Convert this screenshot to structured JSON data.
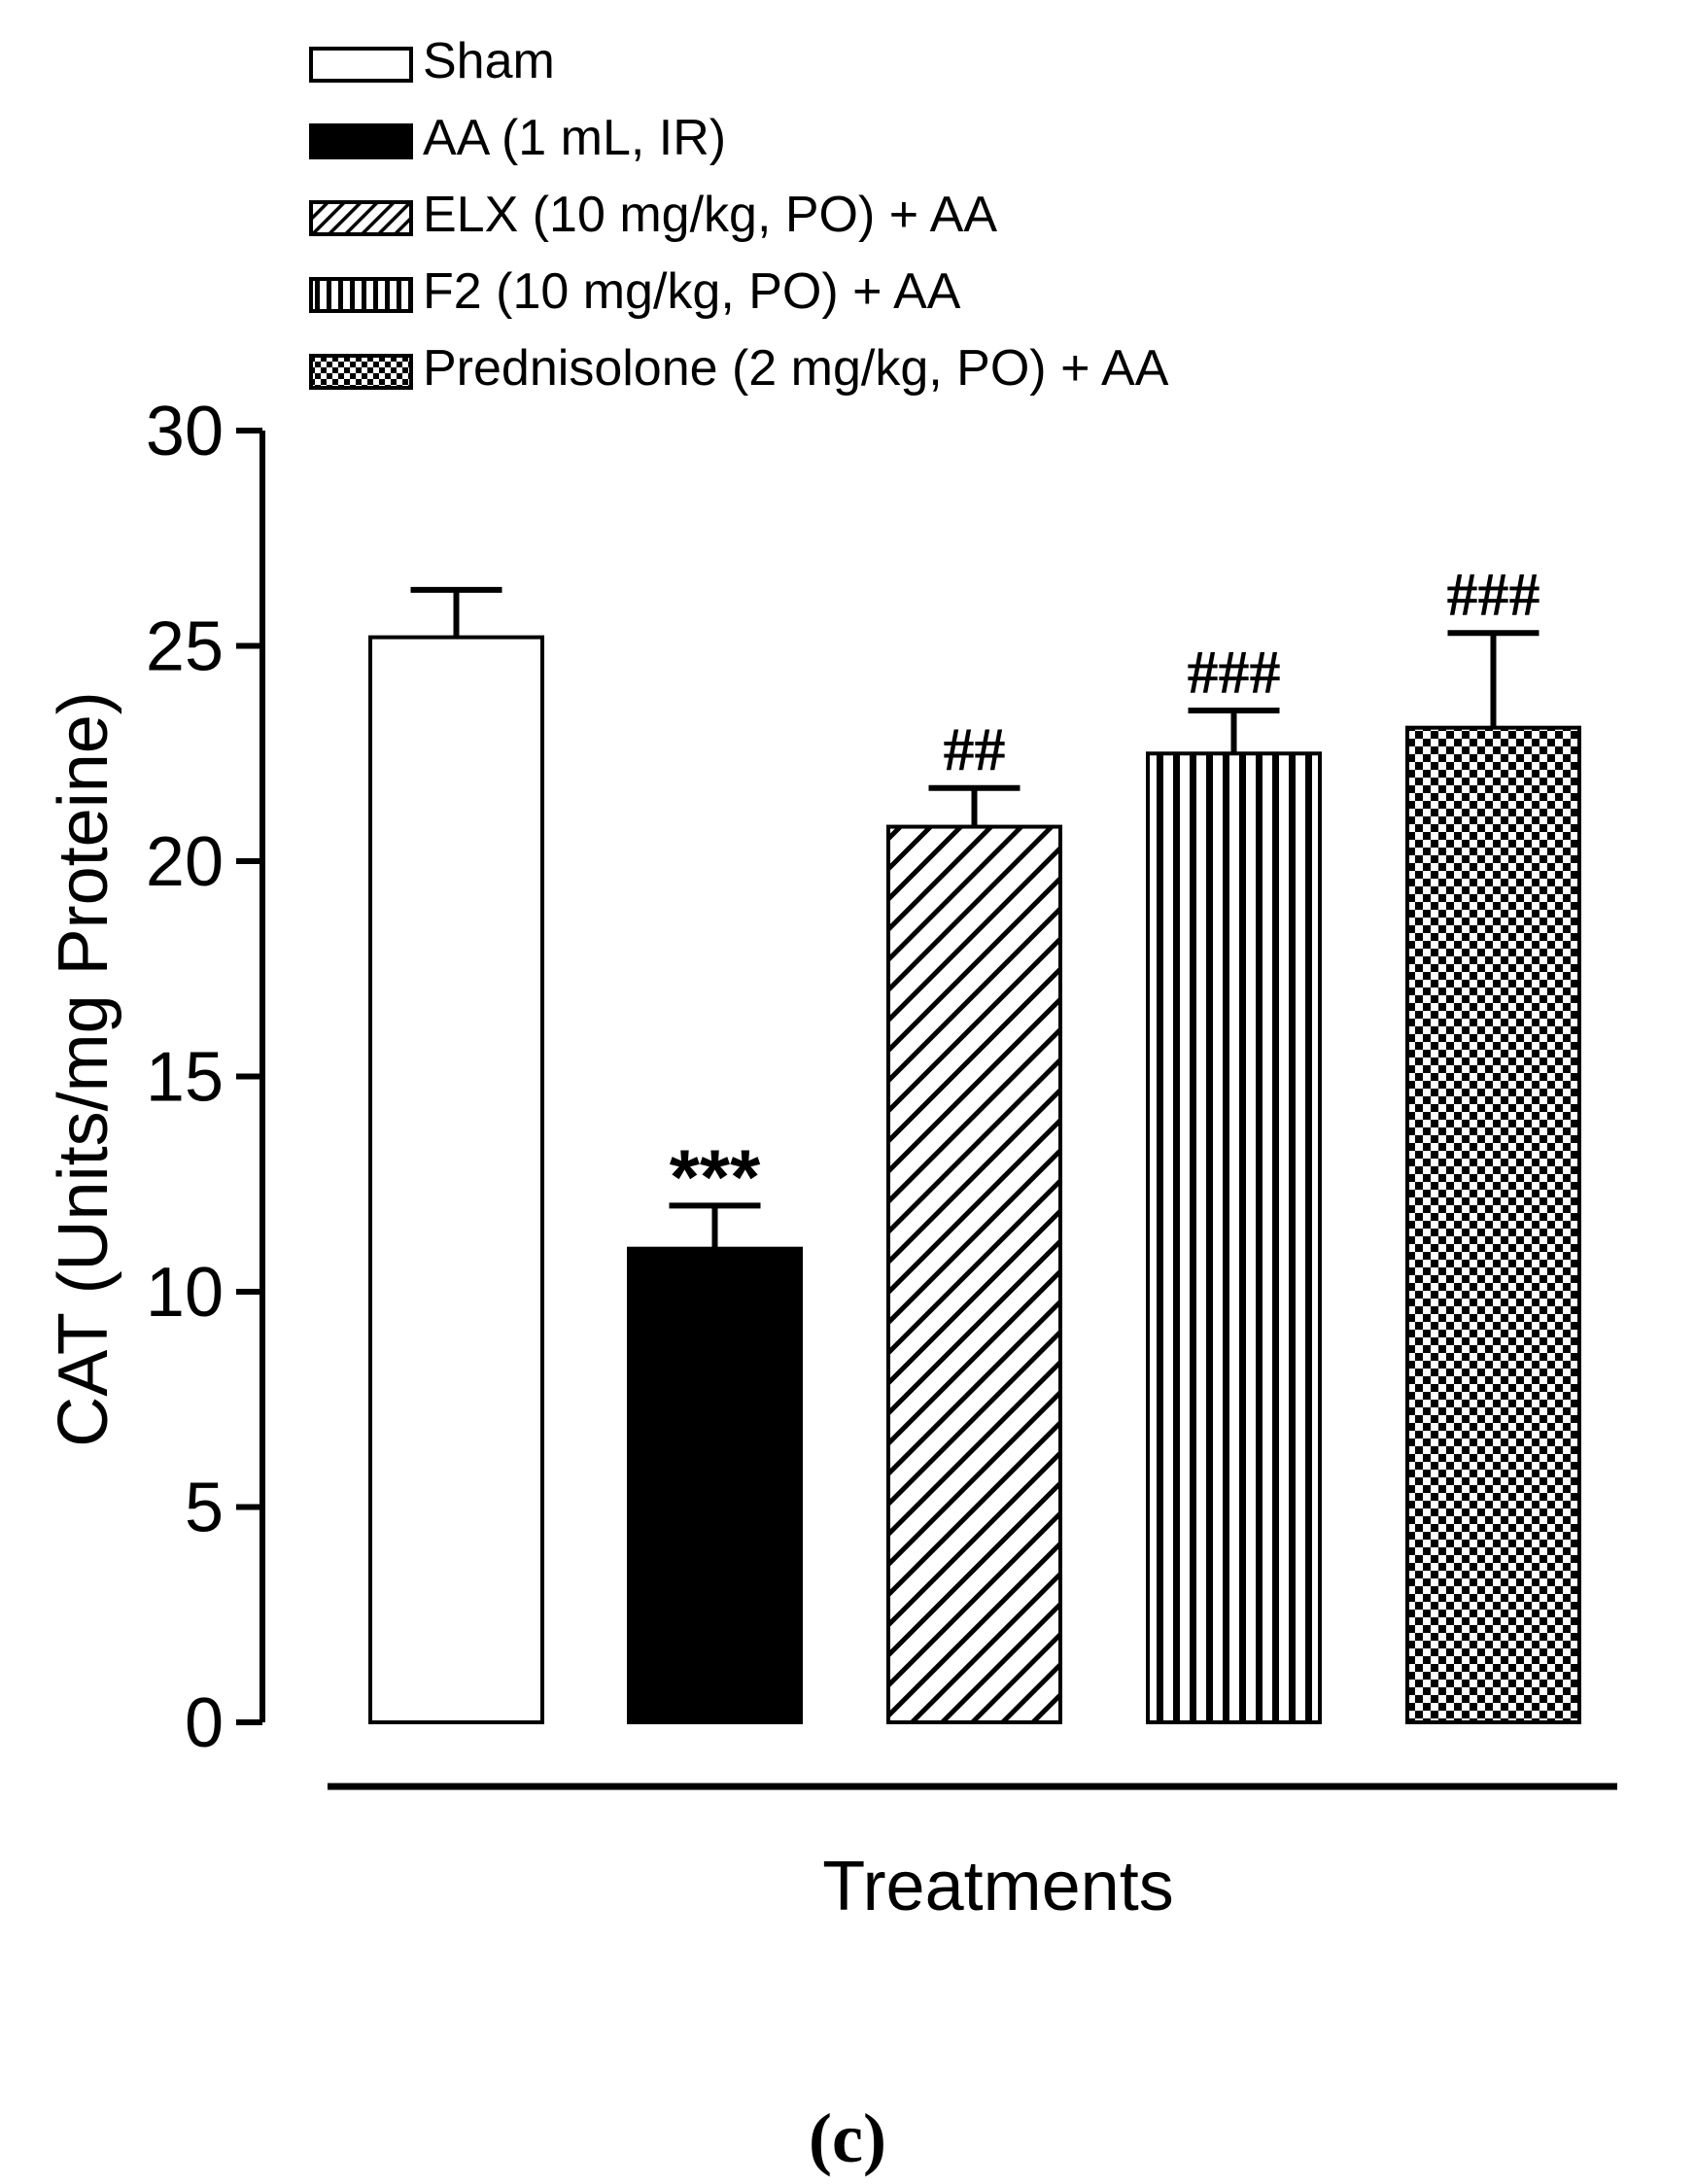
{
  "chart_data": {
    "type": "bar",
    "panel_label": "(c)",
    "ylabel": "CAT (Units/mg Proteine)",
    "xlabel": "Treatments",
    "ylim": [
      0,
      30
    ],
    "yticks": [
      0,
      5,
      10,
      15,
      20,
      25,
      30
    ],
    "ytick_labels": [
      "0",
      "5",
      "10",
      "15",
      "20",
      "25",
      "30"
    ],
    "grid": false,
    "legend_position": "top-left",
    "categories": [
      "Sham",
      "AA (1 mL, IR)",
      "ELX (10 mg/kg, PO) + AA",
      "F2 (10 mg/kg, PO) + AA",
      "Prednisolone (2 mg/kg, PO) + AA"
    ],
    "values": [
      25.2,
      11.0,
      20.8,
      22.5,
      23.1
    ],
    "errors": [
      1.1,
      1.0,
      0.9,
      1.0,
      2.2
    ],
    "annotations": [
      "",
      "***",
      "##",
      "###",
      "###"
    ],
    "fills": [
      "white",
      "solid-black",
      "diagonal-hatch",
      "vertical-stripes",
      "checkerboard"
    ]
  }
}
